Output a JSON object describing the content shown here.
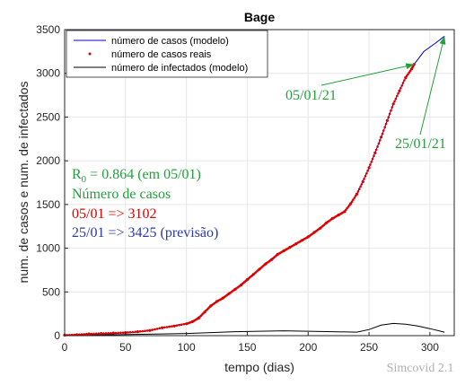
{
  "chart_data": {
    "type": "line",
    "title": "Bage",
    "xlabel": "tempo (dias)",
    "ylabel": "num. de casos e num. de infectados",
    "xlim": [
      0,
      320
    ],
    "ylim": [
      0,
      3500
    ],
    "xticks": [
      0,
      50,
      100,
      150,
      200,
      250,
      300
    ],
    "yticks": [
      0,
      500,
      1000,
      1500,
      2000,
      2500,
      3000,
      3500
    ],
    "legend_position": "top-left",
    "series": [
      {
        "name": "número de casos (modelo)",
        "color": "#0000cc",
        "style": "line",
        "x": [
          0,
          20,
          40,
          60,
          70,
          80,
          90,
          100,
          105,
          110,
          120,
          130,
          140,
          150,
          160,
          170,
          180,
          190,
          200,
          210,
          220,
          230,
          240,
          250,
          260,
          270,
          280,
          287,
          295,
          305,
          312
        ],
        "y": [
          5,
          15,
          25,
          40,
          60,
          90,
          115,
          140,
          165,
          210,
          340,
          430,
          530,
          650,
          760,
          880,
          970,
          1050,
          1130,
          1230,
          1340,
          1420,
          1620,
          1920,
          2270,
          2650,
          2950,
          3102,
          3250,
          3350,
          3425
        ]
      },
      {
        "name": "número de casos reais",
        "color": "#dd0000",
        "style": "points",
        "x": [
          0,
          10,
          20,
          30,
          40,
          50,
          60,
          70,
          80,
          90,
          100,
          105,
          110,
          115,
          120,
          125,
          130,
          135,
          140,
          145,
          150,
          155,
          160,
          165,
          170,
          175,
          180,
          185,
          190,
          195,
          200,
          205,
          210,
          215,
          220,
          225,
          230,
          235,
          240,
          245,
          250,
          255,
          260,
          265,
          270,
          275,
          280,
          285,
          287
        ],
        "y": [
          5,
          10,
          20,
          25,
          30,
          35,
          45,
          60,
          90,
          110,
          135,
          160,
          200,
          270,
          340,
          390,
          430,
          480,
          530,
          580,
          640,
          700,
          760,
          820,
          870,
          930,
          970,
          1010,
          1050,
          1090,
          1130,
          1180,
          1230,
          1290,
          1340,
          1380,
          1420,
          1510,
          1620,
          1760,
          1920,
          2090,
          2270,
          2460,
          2650,
          2800,
          2950,
          3050,
          3102
        ]
      },
      {
        "name": "número de infectados (modelo)",
        "color": "#000000",
        "style": "line",
        "x": [
          0,
          40,
          80,
          100,
          120,
          140,
          160,
          180,
          200,
          220,
          240,
          250,
          260,
          270,
          280,
          290,
          300,
          312
        ],
        "y": [
          5,
          10,
          20,
          25,
          35,
          45,
          50,
          55,
          50,
          45,
          40,
          70,
          120,
          140,
          130,
          110,
          80,
          40
        ]
      }
    ],
    "annotations": {
      "r0_prefix": "R",
      "r0_sub": "0",
      "r0_text": " = 0.864 (em 05/01)",
      "cases_heading": "Número de casos",
      "real_line": "05/01 => 3102",
      "forecast_line": "25/01 => 3425 (previsão)",
      "date1": "05/01/21",
      "date2": "25/01/21",
      "arrow1_target": [
        287,
        3102
      ],
      "arrow2_target": [
        312,
        3425
      ],
      "watermark": "Simcovid 2.1"
    },
    "colors": {
      "green": "#22a03c",
      "red": "#dd0000",
      "blue": "#2a3aa8",
      "watermark": "#b0b0b0"
    }
  }
}
